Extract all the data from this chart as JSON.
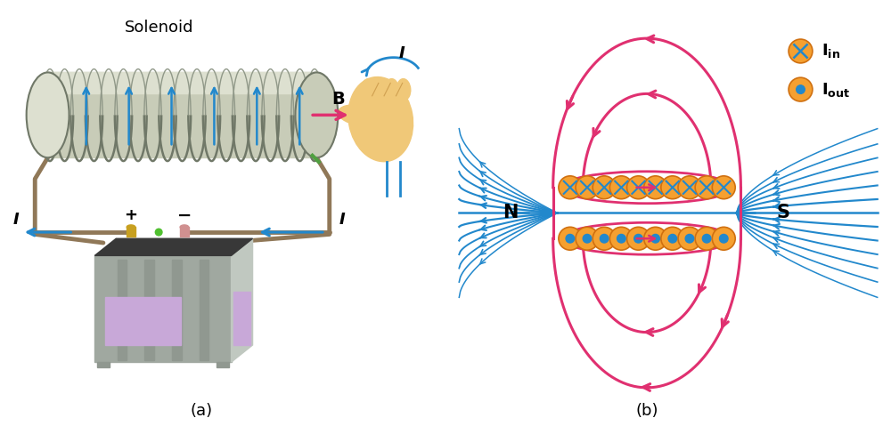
{
  "figure_width": 10.0,
  "figure_height": 4.79,
  "background_color": "#ffffff",
  "label_a": "(a)",
  "label_b": "(b)",
  "solenoid_label": "Solenoid",
  "colors": {
    "coil_fill": "#c8ccb8",
    "coil_light": "#dde0d0",
    "coil_dark": "#707868",
    "coil_shadow": "#909888",
    "wire": "#b0a888",
    "wire_dark": "#907858",
    "blue_arrow": "#2288cc",
    "pink_arrow": "#e03070",
    "orange_circle": "#f5a030",
    "orange_edge": "#d07010",
    "blue_x": "#2288cc",
    "blue_dot": "#2288cc",
    "bat_body": "#a0a8a0",
    "bat_body2": "#b8beb8",
    "bat_top": "#383838",
    "bat_win": "#c8a8d8",
    "bat_side": "#c0c8c0",
    "bat_rib": "#909890",
    "bat_post_gold": "#c8a020",
    "bat_post_pink": "#d09090",
    "bat_green": "#50c030",
    "hand_skin": "#f0c878",
    "hand_line": "#d0a050",
    "text_black": "#000000",
    "green_wire": "#50a040"
  },
  "n_coils": 19,
  "n_circles": 10
}
